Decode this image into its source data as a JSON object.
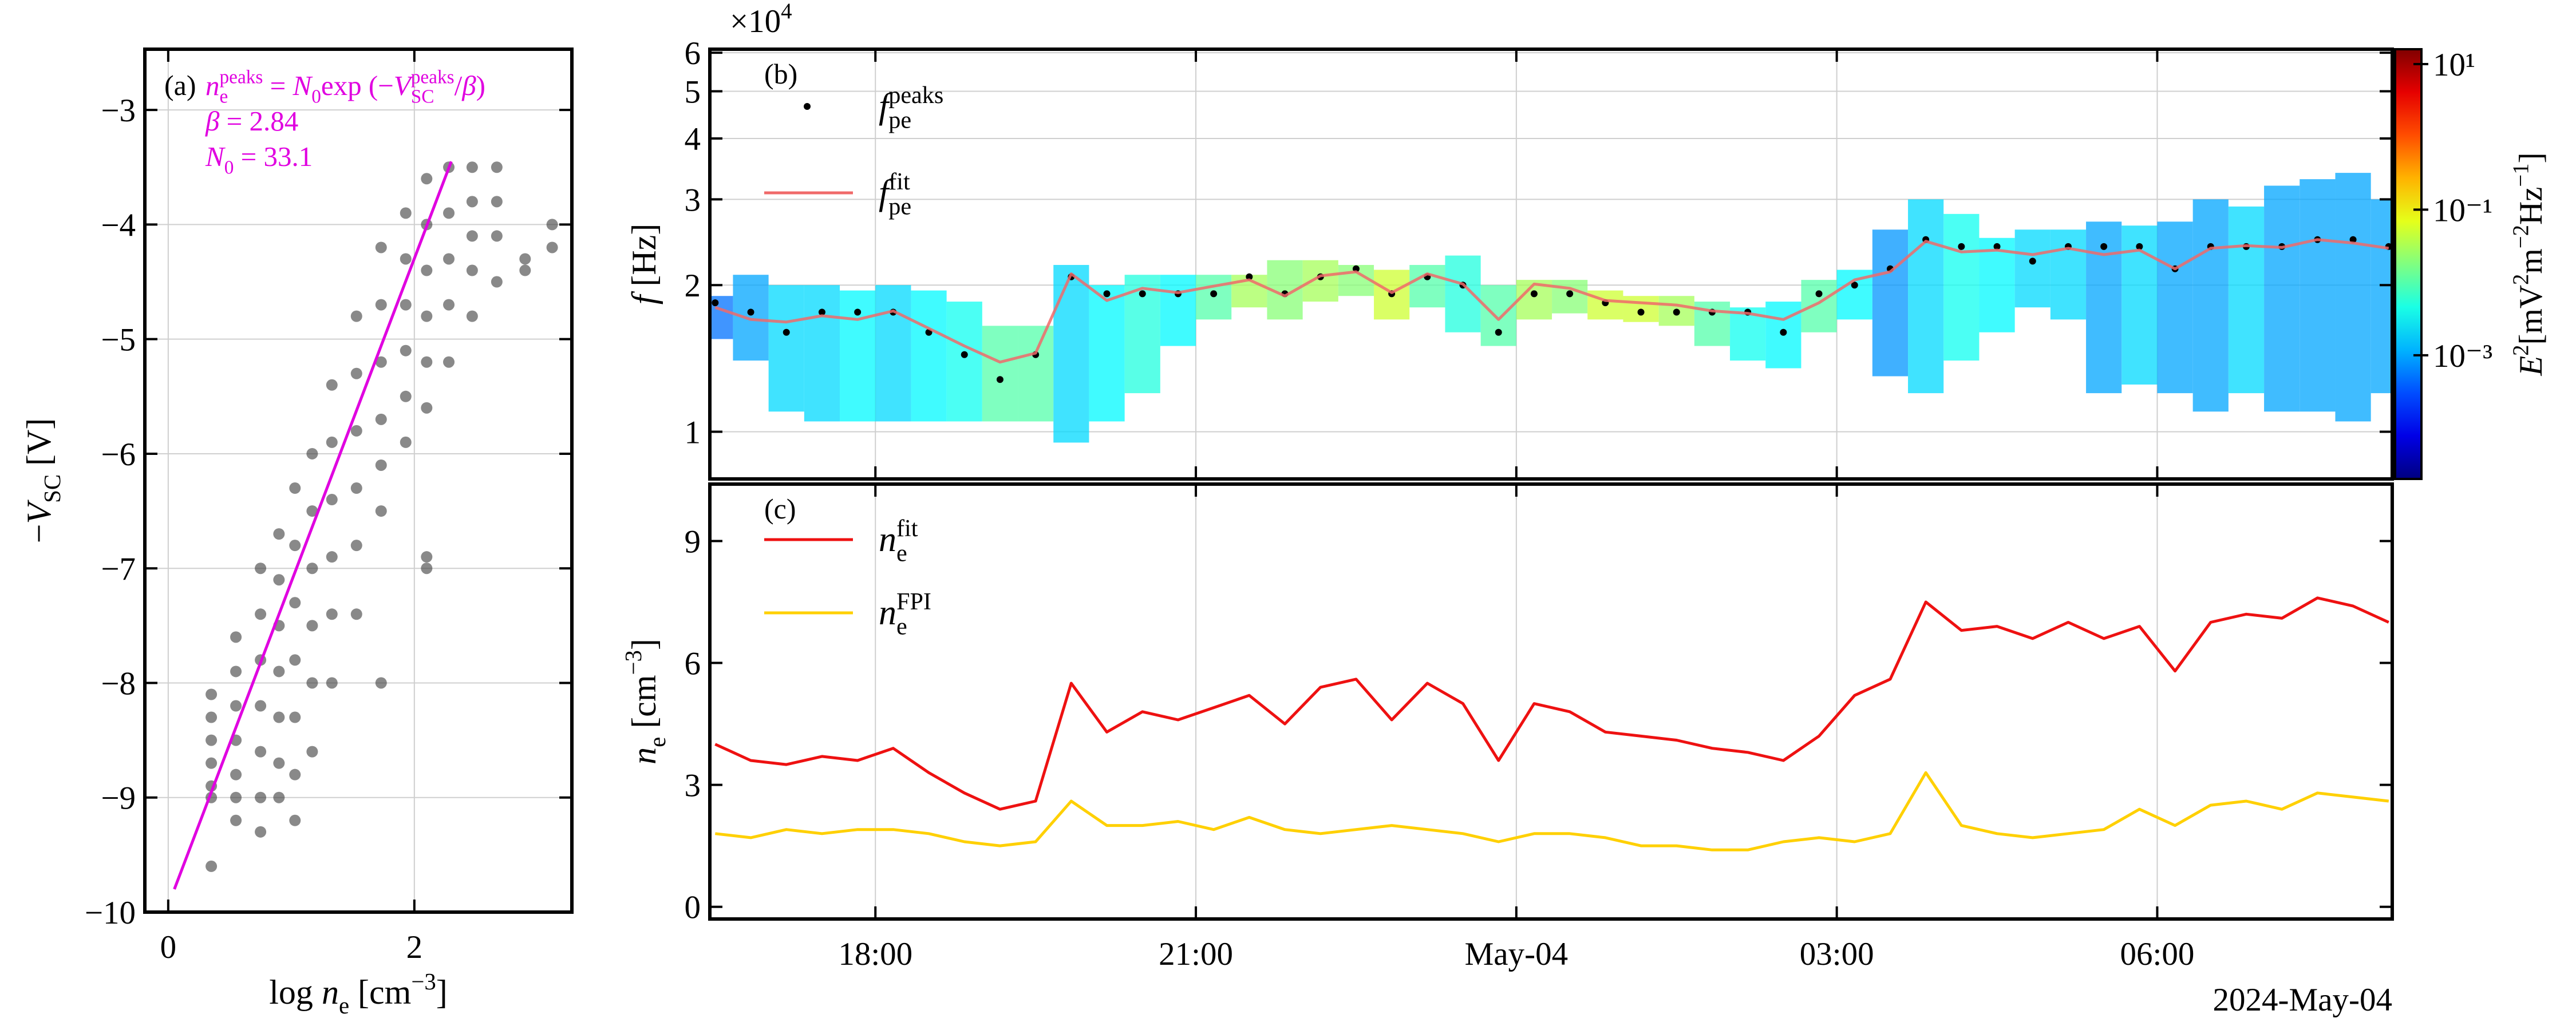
{
  "chart_data": [
    {
      "type": "scatter",
      "panel_label": "(a)",
      "xlabel": [
        {
          "text": "log "
        },
        {
          "text": "n",
          "italic": true
        },
        {
          "text": "e",
          "shift": "sub"
        },
        {
          "text": " [cm"
        },
        {
          "text": "−3",
          "shift": "sup"
        },
        {
          "text": "]"
        }
      ],
      "ylabel": [
        {
          "text": "−"
        },
        {
          "text": "V",
          "italic": true
        },
        {
          "text": "SC",
          "shift": "sub"
        },
        {
          "text": " [V]"
        }
      ],
      "xlim": [
        -0.19,
        3.28
      ],
      "ylim": [
        -10,
        -2.47
      ],
      "xticks": [
        0,
        2
      ],
      "yticks": [
        {
          "value": -10,
          "label": "−10"
        },
        {
          "value": -9,
          "label": "−9"
        },
        {
          "value": -8,
          "label": "−8"
        },
        {
          "value": -7,
          "label": "−7"
        },
        {
          "value": -6,
          "label": "−6"
        },
        {
          "value": -5,
          "label": "−5"
        },
        {
          "value": -4,
          "label": "−4"
        },
        {
          "value": -3,
          "label": "−3"
        }
      ],
      "grid": true,
      "color": "#3a3a3a",
      "alpha": 0.6,
      "x": [
        0.35,
        0.35,
        0.35,
        0.35,
        0.35,
        0.35,
        0.35,
        0.55,
        0.55,
        0.55,
        0.55,
        0.55,
        0.55,
        0.55,
        0.75,
        0.75,
        0.75,
        0.75,
        0.75,
        0.75,
        0.75,
        0.9,
        0.9,
        0.9,
        0.9,
        0.9,
        0.9,
        0.9,
        1.03,
        1.03,
        1.03,
        1.03,
        1.03,
        1.03,
        1.03,
        1.17,
        1.17,
        1.17,
        1.17,
        1.17,
        1.17,
        1.33,
        1.33,
        1.33,
        1.33,
        1.33,
        1.33,
        1.53,
        1.53,
        1.53,
        1.53,
        1.53,
        1.53,
        1.73,
        1.73,
        1.73,
        1.73,
        1.73,
        1.73,
        1.73,
        1.93,
        1.93,
        1.93,
        1.93,
        1.93,
        1.93,
        2.1,
        2.1,
        2.1,
        2.1,
        2.1,
        2.1,
        2.1,
        2.1,
        2.28,
        2.28,
        2.28,
        2.28,
        2.28,
        2.47,
        2.47,
        2.47,
        2.47,
        2.47,
        2.67,
        2.67,
        2.67,
        2.67,
        2.9,
        2.9,
        3.12,
        3.12
      ],
      "values": [
        -8.1,
        -8.3,
        -8.5,
        -8.7,
        -8.9,
        -9.0,
        -9.6,
        -7.6,
        -7.9,
        -8.2,
        -8.5,
        -8.8,
        -9.0,
        -9.2,
        -7.0,
        -7.4,
        -7.8,
        -8.2,
        -8.6,
        -9.0,
        -9.3,
        -6.7,
        -7.1,
        -7.5,
        -7.9,
        -8.3,
        -8.7,
        -9.0,
        -6.3,
        -6.8,
        -7.3,
        -7.8,
        -8.3,
        -8.8,
        -9.2,
        -6.0,
        -6.5,
        -7.0,
        -7.5,
        -8.0,
        -8.6,
        -5.4,
        -5.9,
        -6.4,
        -6.9,
        -7.4,
        -8.0,
        -4.8,
        -5.3,
        -5.8,
        -6.3,
        -6.8,
        -7.4,
        -4.2,
        -4.7,
        -5.2,
        -5.7,
        -6.1,
        -6.5,
        -8.0,
        -3.9,
        -4.3,
        -4.7,
        -5.1,
        -5.5,
        -5.9,
        -3.6,
        -4.0,
        -4.4,
        -4.8,
        -5.2,
        -5.6,
        -6.9,
        -7.0,
        -3.5,
        -3.9,
        -4.3,
        -4.7,
        -5.2,
        -3.5,
        -3.8,
        -4.1,
        -4.4,
        -4.8,
        -3.5,
        -3.8,
        -4.1,
        -4.5,
        -4.3,
        -4.4,
        -4.0,
        -4.2
      ],
      "fit": {
        "color": "#e000e0",
        "x": [
          0.05,
          2.3
        ],
        "values": [
          -9.8,
          -3.45
        ]
      },
      "annotations": [
        {
          "color": "#e000e0",
          "segments": [
            {
              "text": "n",
              "italic": true
            },
            {
              "text": "e",
              "shift": "sub"
            },
            {
              "text": "peaks",
              "shift": "sup"
            },
            {
              "text": " = "
            },
            {
              "text": "N",
              "italic": true
            },
            {
              "text": "0",
              "shift": "sub"
            },
            {
              "text": "exp (−"
            },
            {
              "text": "V",
              "italic": true
            },
            {
              "text": "SC",
              "shift": "sub"
            },
            {
              "text": "peaks",
              "shift": "sup"
            },
            {
              "text": "/"
            },
            {
              "text": "β",
              "italic": true
            },
            {
              "text": ")"
            }
          ]
        },
        {
          "color": "#e000e0",
          "segments": [
            {
              "text": "β",
              "italic": true
            },
            {
              "text": "  = 2.84"
            }
          ]
        },
        {
          "color": "#e000e0",
          "segments": [
            {
              "text": "N",
              "italic": true
            },
            {
              "text": "0",
              "shift": "sub"
            },
            {
              "text": " = 33.1"
            }
          ]
        }
      ]
    },
    {
      "type": "spectrogram",
      "panel_label": "(b)",
      "ylabel": [
        {
          "text": "f",
          "italic": true
        },
        {
          "text": " [Hz]"
        }
      ],
      "y_offset_label": [
        {
          "text": "×10"
        },
        {
          "text": "4",
          "shift": "sup"
        }
      ],
      "log_y": true,
      "ylim": [
        8000,
        61000
      ],
      "yticks": [
        {
          "value": 10000,
          "label": "1"
        },
        {
          "value": 20000,
          "label": "2"
        },
        {
          "value": 30000,
          "label": "3"
        },
        {
          "value": 40000,
          "label": "4"
        },
        {
          "value": 50000,
          "label": "5"
        },
        {
          "value": 60000,
          "label": "6"
        }
      ],
      "xlim": [
        "2024-05-03T16:27",
        "2024-05-04T08:12"
      ],
      "grid": true,
      "legend": "upper left",
      "x": [
        "2024-05-03T16:30",
        "2024-05-03T16:50",
        "2024-05-03T17:10",
        "2024-05-03T17:30",
        "2024-05-03T17:50",
        "2024-05-03T18:10",
        "2024-05-03T18:30",
        "2024-05-03T18:50",
        "2024-05-03T19:10",
        "2024-05-03T19:30",
        "2024-05-03T19:50",
        "2024-05-03T20:10",
        "2024-05-03T20:30",
        "2024-05-03T20:50",
        "2024-05-03T21:10",
        "2024-05-03T21:30",
        "2024-05-03T21:50",
        "2024-05-03T22:10",
        "2024-05-03T22:30",
        "2024-05-03T22:50",
        "2024-05-03T23:10",
        "2024-05-03T23:30",
        "2024-05-03T23:50",
        "2024-05-04T00:10",
        "2024-05-04T00:30",
        "2024-05-04T00:50",
        "2024-05-04T01:10",
        "2024-05-04T01:30",
        "2024-05-04T01:50",
        "2024-05-04T02:10",
        "2024-05-04T02:30",
        "2024-05-04T02:50",
        "2024-05-04T03:10",
        "2024-05-04T03:30",
        "2024-05-04T03:50",
        "2024-05-04T04:10",
        "2024-05-04T04:30",
        "2024-05-04T04:50",
        "2024-05-04T05:10",
        "2024-05-04T05:30",
        "2024-05-04T05:50",
        "2024-05-04T06:10",
        "2024-05-04T06:30",
        "2024-05-04T06:50",
        "2024-05-04T07:10",
        "2024-05-04T07:30",
        "2024-05-04T07:50",
        "2024-05-04T08:10"
      ],
      "spectrogram": {
        "colormap": "jet",
        "log_color": true,
        "clim": [
          2e-05,
          16
        ],
        "colorbar_ticks": [
          {
            "value": 10,
            "label": "10¹"
          },
          {
            "value": 0.1,
            "label": "10⁻¹"
          },
          {
            "value": 0.001,
            "label": "10⁻³"
          }
        ],
        "colorbar_label": [
          {
            "text": "E",
            "italic": true
          },
          {
            "text": "2",
            "shift": "sup"
          },
          {
            "text": "[mV"
          },
          {
            "text": "2",
            "shift": "sup"
          },
          {
            "text": "m"
          },
          {
            "text": "−2",
            "shift": "sup"
          },
          {
            "text": "Hz"
          },
          {
            "text": "−1",
            "shift": "sup"
          },
          {
            "text": "]"
          }
        ],
        "f_low": [
          15500,
          14000,
          11000,
          10500,
          10500,
          10500,
          10500,
          10500,
          10500,
          10500,
          9500,
          10500,
          12000,
          15000,
          17000,
          18000,
          17000,
          18500,
          19000,
          17000,
          18000,
          16000,
          15000,
          17000,
          17500,
          17000,
          16800,
          16500,
          15000,
          14000,
          13500,
          16000,
          17000,
          13000,
          12000,
          14000,
          16000,
          18000,
          17000,
          12000,
          12500,
          12000,
          11000,
          12000,
          11000,
          11000,
          10500,
          12000
        ],
        "f_high": [
          19000,
          21000,
          20000,
          20000,
          19500,
          20000,
          19500,
          18500,
          16500,
          16500,
          22000,
          20000,
          21000,
          21000,
          21000,
          21000,
          22500,
          22500,
          22000,
          21500,
          22000,
          23000,
          20000,
          20500,
          20500,
          19500,
          19000,
          19000,
          18500,
          18000,
          18500,
          20500,
          21500,
          26000,
          30000,
          28000,
          25000,
          26000,
          26000,
          27000,
          26500,
          27000,
          30000,
          29000,
          32000,
          33000,
          34000,
          30000
        ],
        "power": [
          0.0005,
          0.001,
          0.002,
          0.002,
          0.003,
          0.002,
          0.003,
          0.004,
          0.01,
          0.01,
          0.002,
          0.003,
          0.005,
          0.003,
          0.01,
          0.03,
          0.02,
          0.03,
          0.02,
          0.05,
          0.01,
          0.005,
          0.01,
          0.03,
          0.02,
          0.05,
          0.05,
          0.03,
          0.01,
          0.004,
          0.003,
          0.01,
          0.003,
          0.0008,
          0.002,
          0.004,
          0.003,
          0.002,
          0.002,
          0.001,
          0.002,
          0.001,
          0.001,
          0.002,
          0.001,
          0.001,
          0.001,
          0.001
        ]
      },
      "series": [
        {
          "name": [
            {
              "text": "f",
              "italic": true
            },
            {
              "text": "pe",
              "shift": "sub"
            },
            {
              "text": "peaks",
              "shift": "sup"
            }
          ],
          "color": "#000000",
          "style": "dots",
          "values": [
            18400,
            17600,
            16000,
            17600,
            17600,
            17600,
            16000,
            14400,
            12800,
            14400,
            20800,
            19200,
            19200,
            19200,
            19200,
            20800,
            19200,
            20800,
            21600,
            19200,
            20800,
            20000,
            16000,
            19200,
            19200,
            18400,
            17600,
            17600,
            17600,
            17600,
            16000,
            19200,
            20000,
            21600,
            24800,
            24000,
            24000,
            22400,
            24000,
            24000,
            24000,
            21600,
            24000,
            24000,
            24000,
            24800,
            24800,
            24000
          ]
        },
        {
          "name": [
            {
              "text": "f",
              "italic": true
            },
            {
              "text": "pe",
              "shift": "sub"
            },
            {
              "text": "fit",
              "shift": "sup"
            }
          ],
          "color": "#f06a6a",
          "style": "line",
          "values": [
            18000,
            17000,
            16800,
            17300,
            17000,
            17700,
            16300,
            15000,
            13900,
            14500,
            21100,
            18600,
            19700,
            19300,
            19900,
            20500,
            19000,
            20900,
            21300,
            19300,
            21100,
            20100,
            17000,
            20100,
            19700,
            18600,
            18400,
            18200,
            17700,
            17500,
            17000,
            18400,
            20500,
            21300,
            24600,
            23400,
            23600,
            23100,
            23800,
            23100,
            23600,
            21600,
            23800,
            24100,
            23900,
            24800,
            24400,
            23800
          ]
        }
      ]
    },
    {
      "type": "line",
      "panel_label": "(c)",
      "ylabel": [
        {
          "text": "n",
          "italic": true
        },
        {
          "text": "e",
          "shift": "sub"
        },
        {
          "text": " [cm"
        },
        {
          "text": "−3",
          "shift": "sup"
        },
        {
          "text": "]"
        }
      ],
      "xlim": [
        "2024-05-03T16:27",
        "2024-05-04T08:12"
      ],
      "ylim": [
        -0.3,
        10.4
      ],
      "yticks": [
        0,
        3,
        6,
        9
      ],
      "xticks": [
        {
          "value": "2024-05-03T18:00",
          "label": "18:00"
        },
        {
          "value": "2024-05-03T21:00",
          "label": "21:00"
        },
        {
          "value": "2024-05-04T00:00",
          "label": "May-04"
        },
        {
          "value": "2024-05-04T03:00",
          "label": "03:00"
        },
        {
          "value": "2024-05-04T06:00",
          "label": "06:00"
        }
      ],
      "date_label": "2024-May-04",
      "grid": "x",
      "legend": "upper left",
      "x": [
        "2024-05-03T16:30",
        "2024-05-03T16:50",
        "2024-05-03T17:10",
        "2024-05-03T17:30",
        "2024-05-03T17:50",
        "2024-05-03T18:10",
        "2024-05-03T18:30",
        "2024-05-03T18:50",
        "2024-05-03T19:10",
        "2024-05-03T19:30",
        "2024-05-03T19:50",
        "2024-05-03T20:10",
        "2024-05-03T20:30",
        "2024-05-03T20:50",
        "2024-05-03T21:10",
        "2024-05-03T21:30",
        "2024-05-03T21:50",
        "2024-05-03T22:10",
        "2024-05-03T22:30",
        "2024-05-03T22:50",
        "2024-05-03T23:10",
        "2024-05-03T23:30",
        "2024-05-03T23:50",
        "2024-05-04T00:10",
        "2024-05-04T00:30",
        "2024-05-04T00:50",
        "2024-05-04T01:10",
        "2024-05-04T01:30",
        "2024-05-04T01:50",
        "2024-05-04T02:10",
        "2024-05-04T02:30",
        "2024-05-04T02:50",
        "2024-05-04T03:10",
        "2024-05-04T03:30",
        "2024-05-04T03:50",
        "2024-05-04T04:10",
        "2024-05-04T04:30",
        "2024-05-04T04:50",
        "2024-05-04T05:10",
        "2024-05-04T05:30",
        "2024-05-04T05:50",
        "2024-05-04T06:10",
        "2024-05-04T06:30",
        "2024-05-04T06:50",
        "2024-05-04T07:10",
        "2024-05-04T07:30",
        "2024-05-04T07:50",
        "2024-05-04T08:10"
      ],
      "series": [
        {
          "name": [
            {
              "text": "n",
              "italic": true
            },
            {
              "text": "e",
              "shift": "sub"
            },
            {
              "text": "fit",
              "shift": "sup"
            }
          ],
          "color": "#ee1111",
          "values": [
            4.0,
            3.6,
            3.5,
            3.7,
            3.6,
            3.9,
            3.3,
            2.8,
            2.4,
            2.6,
            5.5,
            4.3,
            4.8,
            4.6,
            4.9,
            5.2,
            4.5,
            5.4,
            5.6,
            4.6,
            5.5,
            5.0,
            3.6,
            5.0,
            4.8,
            4.3,
            4.2,
            4.1,
            3.9,
            3.8,
            3.6,
            4.2,
            5.2,
            5.6,
            7.5,
            6.8,
            6.9,
            6.6,
            7.0,
            6.6,
            6.9,
            5.8,
            7.0,
            7.2,
            7.1,
            7.6,
            7.4,
            7.0
          ]
        },
        {
          "name": [
            {
              "text": "n",
              "italic": true
            },
            {
              "text": "e",
              "shift": "sub"
            },
            {
              "text": "FPI",
              "shift": "sup"
            }
          ],
          "color": "#ffd000",
          "values": [
            1.8,
            1.7,
            1.9,
            1.8,
            1.9,
            1.9,
            1.8,
            1.6,
            1.5,
            1.6,
            2.6,
            2.0,
            2.0,
            2.1,
            1.9,
            2.2,
            1.9,
            1.8,
            1.9,
            2.0,
            1.9,
            1.8,
            1.6,
            1.8,
            1.8,
            1.7,
            1.5,
            1.5,
            1.4,
            1.4,
            1.6,
            1.7,
            1.6,
            1.8,
            3.3,
            2.0,
            1.8,
            1.7,
            1.8,
            1.9,
            2.4,
            2.0,
            2.5,
            2.6,
            2.4,
            2.8,
            2.7,
            2.6
          ]
        }
      ]
    }
  ]
}
